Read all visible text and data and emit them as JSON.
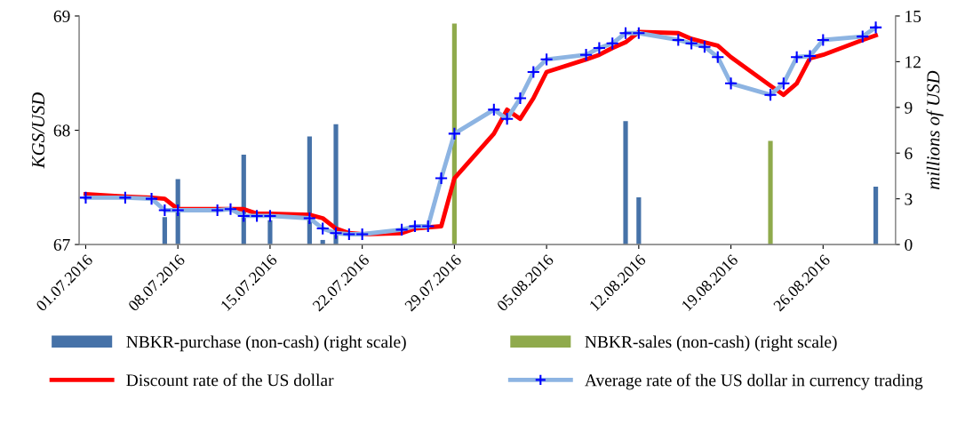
{
  "chart_data": {
    "type": "line",
    "ylabel": "KGS/USD",
    "y2label": "millions of USD",
    "xlim": [
      "2016-06-30T12:00",
      "2016-08-31T12:00"
    ],
    "xticks": [
      {
        "value": "2016-07-01",
        "label": "01.07.2016"
      },
      {
        "value": "2016-07-08",
        "label": "08.07.2016"
      },
      {
        "value": "2016-07-15",
        "label": "15.07.2016"
      },
      {
        "value": "2016-07-22",
        "label": "22.07.2016"
      },
      {
        "value": "2016-07-29",
        "label": "29.07.2016"
      },
      {
        "value": "2016-08-05",
        "label": "05.08.2016"
      },
      {
        "value": "2016-08-12",
        "label": "12.08.2016"
      },
      {
        "value": "2016-08-19",
        "label": "19.08.2016"
      },
      {
        "value": "2016-08-26",
        "label": "26.08.2016"
      }
    ],
    "ylim": [
      67,
      69
    ],
    "yticks": [
      67,
      68,
      69
    ],
    "y2lim": [
      0,
      15
    ],
    "y2ticks": [
      0,
      3,
      6,
      9,
      12,
      15
    ],
    "grid": false,
    "legend": "bottom",
    "series": [
      {
        "name": "NBKR-purchase (non-cash) (right scale)",
        "type": "bar",
        "axis": "y2",
        "color": "#4672a8",
        "x": [
          "2016-07-07",
          "2016-07-08",
          "2016-07-13",
          "2016-07-15",
          "2016-07-18",
          "2016-07-19",
          "2016-07-20",
          "2016-08-11",
          "2016-08-12",
          "2016-08-30"
        ],
        "values": [
          1.8,
          4.3,
          5.9,
          1.6,
          7.1,
          0.3,
          7.9,
          8.1,
          3.1,
          3.8
        ]
      },
      {
        "name": "NBKR-sales (non-cash) (right scale)",
        "type": "bar",
        "axis": "y2",
        "color": "#8faa4c",
        "x": [
          "2016-07-29",
          "2016-08-22"
        ],
        "values": [
          14.5,
          6.8
        ]
      },
      {
        "name": "Discount rate of the US dollar",
        "color": "#ff0000",
        "marker": "none",
        "x": [
          "2016-07-01",
          "2016-07-04",
          "2016-07-06",
          "2016-07-07",
          "2016-07-08",
          "2016-07-11",
          "2016-07-12",
          "2016-07-13",
          "2016-07-14",
          "2016-07-15",
          "2016-07-18",
          "2016-07-19",
          "2016-07-20",
          "2016-07-21",
          "2016-07-22",
          "2016-07-25",
          "2016-07-26",
          "2016-07-27",
          "2016-07-28",
          "2016-07-29",
          "2016-08-01",
          "2016-08-02",
          "2016-08-03",
          "2016-08-04",
          "2016-08-05",
          "2016-08-08",
          "2016-08-09",
          "2016-08-10",
          "2016-08-11",
          "2016-08-12",
          "2016-08-15",
          "2016-08-16",
          "2016-08-17",
          "2016-08-18",
          "2016-08-19",
          "2016-08-22",
          "2016-08-23",
          "2016-08-24",
          "2016-08-25",
          "2016-08-26",
          "2016-08-29",
          "2016-08-30"
        ],
        "values": [
          67.44,
          67.42,
          67.41,
          67.4,
          67.31,
          67.31,
          67.31,
          67.31,
          67.27,
          67.27,
          67.26,
          67.23,
          67.14,
          67.1,
          67.09,
          67.1,
          67.14,
          67.15,
          67.16,
          67.58,
          67.97,
          68.18,
          68.1,
          68.28,
          68.51,
          68.62,
          68.66,
          68.72,
          68.77,
          68.86,
          68.85,
          68.8,
          68.77,
          68.74,
          68.64,
          68.39,
          68.31,
          68.41,
          68.63,
          68.66,
          68.79,
          68.83
        ]
      },
      {
        "name": "Average rate of the US dollar in currency trading",
        "color": "#8db4e2",
        "marker": "cross",
        "x": [
          "2016-07-01",
          "2016-07-04",
          "2016-07-06",
          "2016-07-07",
          "2016-07-08",
          "2016-07-11",
          "2016-07-12",
          "2016-07-13",
          "2016-07-14",
          "2016-07-15",
          "2016-07-18",
          "2016-07-19",
          "2016-07-20",
          "2016-07-21",
          "2016-07-22",
          "2016-07-25",
          "2016-07-26",
          "2016-07-27",
          "2016-07-28",
          "2016-07-29",
          "2016-08-01",
          "2016-08-02",
          "2016-08-03",
          "2016-08-04",
          "2016-08-05",
          "2016-08-08",
          "2016-08-09",
          "2016-08-10",
          "2016-08-11",
          "2016-08-12",
          "2016-08-15",
          "2016-08-16",
          "2016-08-17",
          "2016-08-18",
          "2016-08-19",
          "2016-08-22",
          "2016-08-23",
          "2016-08-24",
          "2016-08-25",
          "2016-08-26",
          "2016-08-29",
          "2016-08-30"
        ],
        "values": [
          67.41,
          67.41,
          67.4,
          67.3,
          67.3,
          67.3,
          67.31,
          67.25,
          67.25,
          67.25,
          67.23,
          67.14,
          67.1,
          67.09,
          67.09,
          67.13,
          67.16,
          67.16,
          67.58,
          67.97,
          68.18,
          68.1,
          68.28,
          68.51,
          68.62,
          68.66,
          68.72,
          68.76,
          68.85,
          68.85,
          68.79,
          68.76,
          68.73,
          68.64,
          68.41,
          68.31,
          68.41,
          68.64,
          68.65,
          68.79,
          68.82,
          68.9
        ],
        "colors": [
          "#0000ff",
          "#0000ff",
          "#0000ff",
          "#0000ff",
          "#0000ff",
          "#0000ff",
          "#0000ff",
          "#0000ff",
          "#0000ff",
          "#0000ff",
          "#0000ff",
          "#0000ff",
          "#0000ff",
          "#0000ff",
          "#0000ff",
          "#0000ff",
          "#0000ff",
          "#0000ff",
          "#0000ff",
          "#0000ff",
          "#0000ff",
          "#0000ff",
          "#0000ff",
          "#0000ff",
          "#0000ff",
          "#0000ff",
          "#0000ff",
          "#0000ff",
          "#0000ff",
          "#0000ff",
          "#0000ff",
          "#0000ff",
          "#0000ff",
          "#0000ff",
          "#0000ff",
          "#0000ff",
          "#0000ff",
          "#0000ff",
          "#0000ff",
          "#0000ff",
          "#0000ff",
          "#0000ff"
        ]
      }
    ]
  }
}
